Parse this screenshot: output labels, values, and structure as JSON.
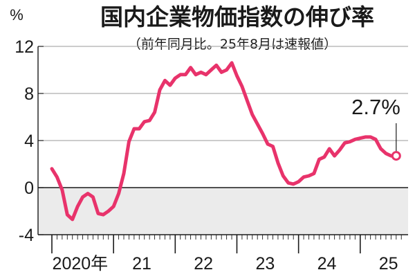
{
  "chart_data": {
    "type": "line",
    "title": "国内企業物価指数の伸び率",
    "subtitle": "（前年同月比。25年8月は速報値）",
    "ylabel": "%",
    "ylim": [
      -4,
      12
    ],
    "yticks": [
      12,
      8,
      4,
      0,
      -4
    ],
    "xlim": [
      0,
      69
    ],
    "year_labels": [
      {
        "label": "2020年",
        "start": 0
      },
      {
        "label": "21",
        "start": 12
      },
      {
        "label": "22",
        "start": 24
      },
      {
        "label": "23",
        "start": 36
      },
      {
        "label": "24",
        "start": 48
      },
      {
        "label": "25",
        "start": 60
      }
    ],
    "highlight_label": "2.7%",
    "line_color": "#e8336b",
    "negative_fill_color": "#ebebeb",
    "series": [
      {
        "values": [
          1.6,
          0.9,
          -0.2,
          -2.3,
          -2.7,
          -1.6,
          -0.8,
          -0.5,
          -0.8,
          -2.2,
          -2.3,
          -2.0,
          -1.6,
          -0.5,
          1.2,
          3.9,
          5.0,
          5.0,
          5.6,
          5.7,
          6.4,
          8.3,
          9.1,
          8.7,
          9.3,
          9.6,
          9.6,
          10.2,
          9.6,
          9.8,
          9.6,
          10.0,
          10.4,
          9.8,
          10.0,
          10.6,
          9.5,
          8.6,
          7.4,
          6.2,
          5.4,
          4.6,
          3.7,
          3.5,
          2.1,
          1.0,
          0.4,
          0.3,
          0.5,
          0.9,
          1.0,
          1.2,
          2.4,
          2.6,
          3.3,
          2.7,
          3.2,
          3.8,
          3.9,
          4.1,
          4.2,
          4.3,
          4.3,
          4.1,
          3.3,
          2.9,
          2.7,
          2.7
        ]
      }
    ]
  }
}
